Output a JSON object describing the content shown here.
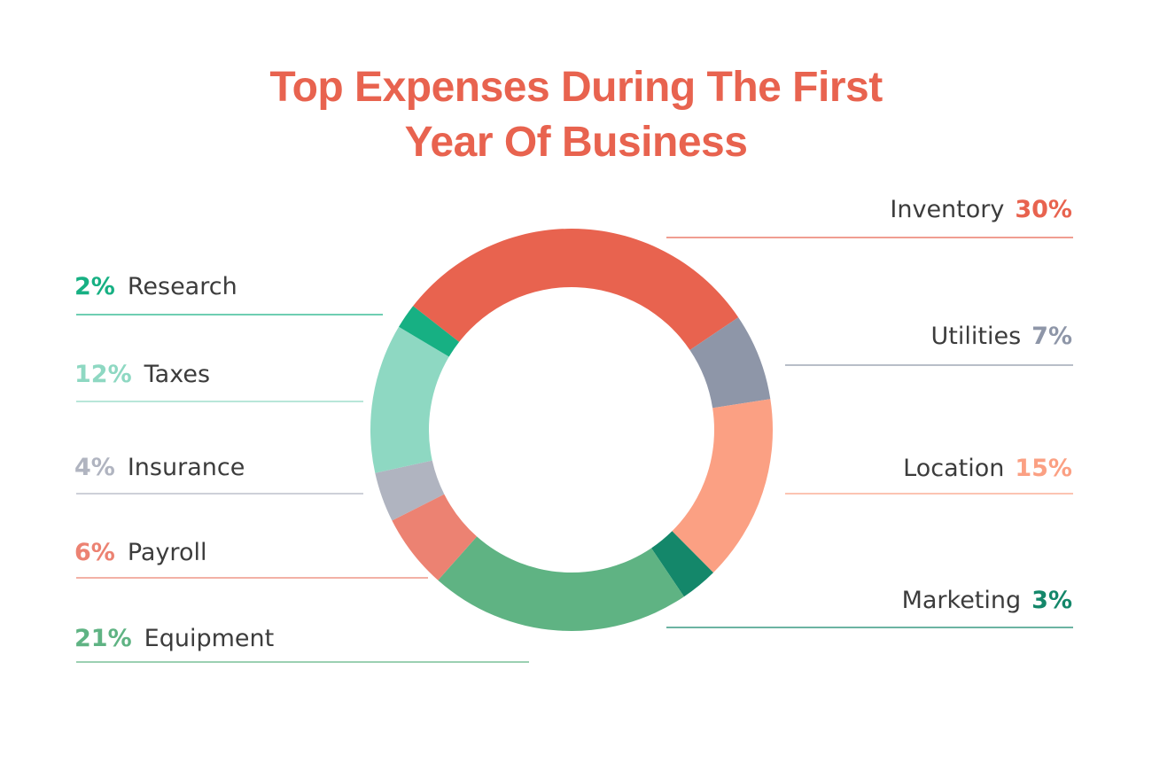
{
  "chart_data": {
    "type": "donut",
    "title": "Top Expenses During The First Year Of Business",
    "categories": [
      "Inventory",
      "Utilities",
      "Location",
      "Marketing",
      "Equipment",
      "Payroll",
      "Insurance",
      "Taxes",
      "Research"
    ],
    "values": [
      30,
      7,
      15,
      3,
      21,
      6,
      4,
      12,
      2
    ],
    "value_labels": [
      "30%",
      "7%",
      "15%",
      "3%",
      "21%",
      "6%",
      "4%",
      "12%",
      "2%"
    ],
    "colors": [
      "#e8634f",
      "#8e96a8",
      "#fba083",
      "#14876a",
      "#5fb383",
      "#ec8272",
      "#b0b4c0",
      "#8ed8c2",
      "#17b083"
    ]
  }
}
